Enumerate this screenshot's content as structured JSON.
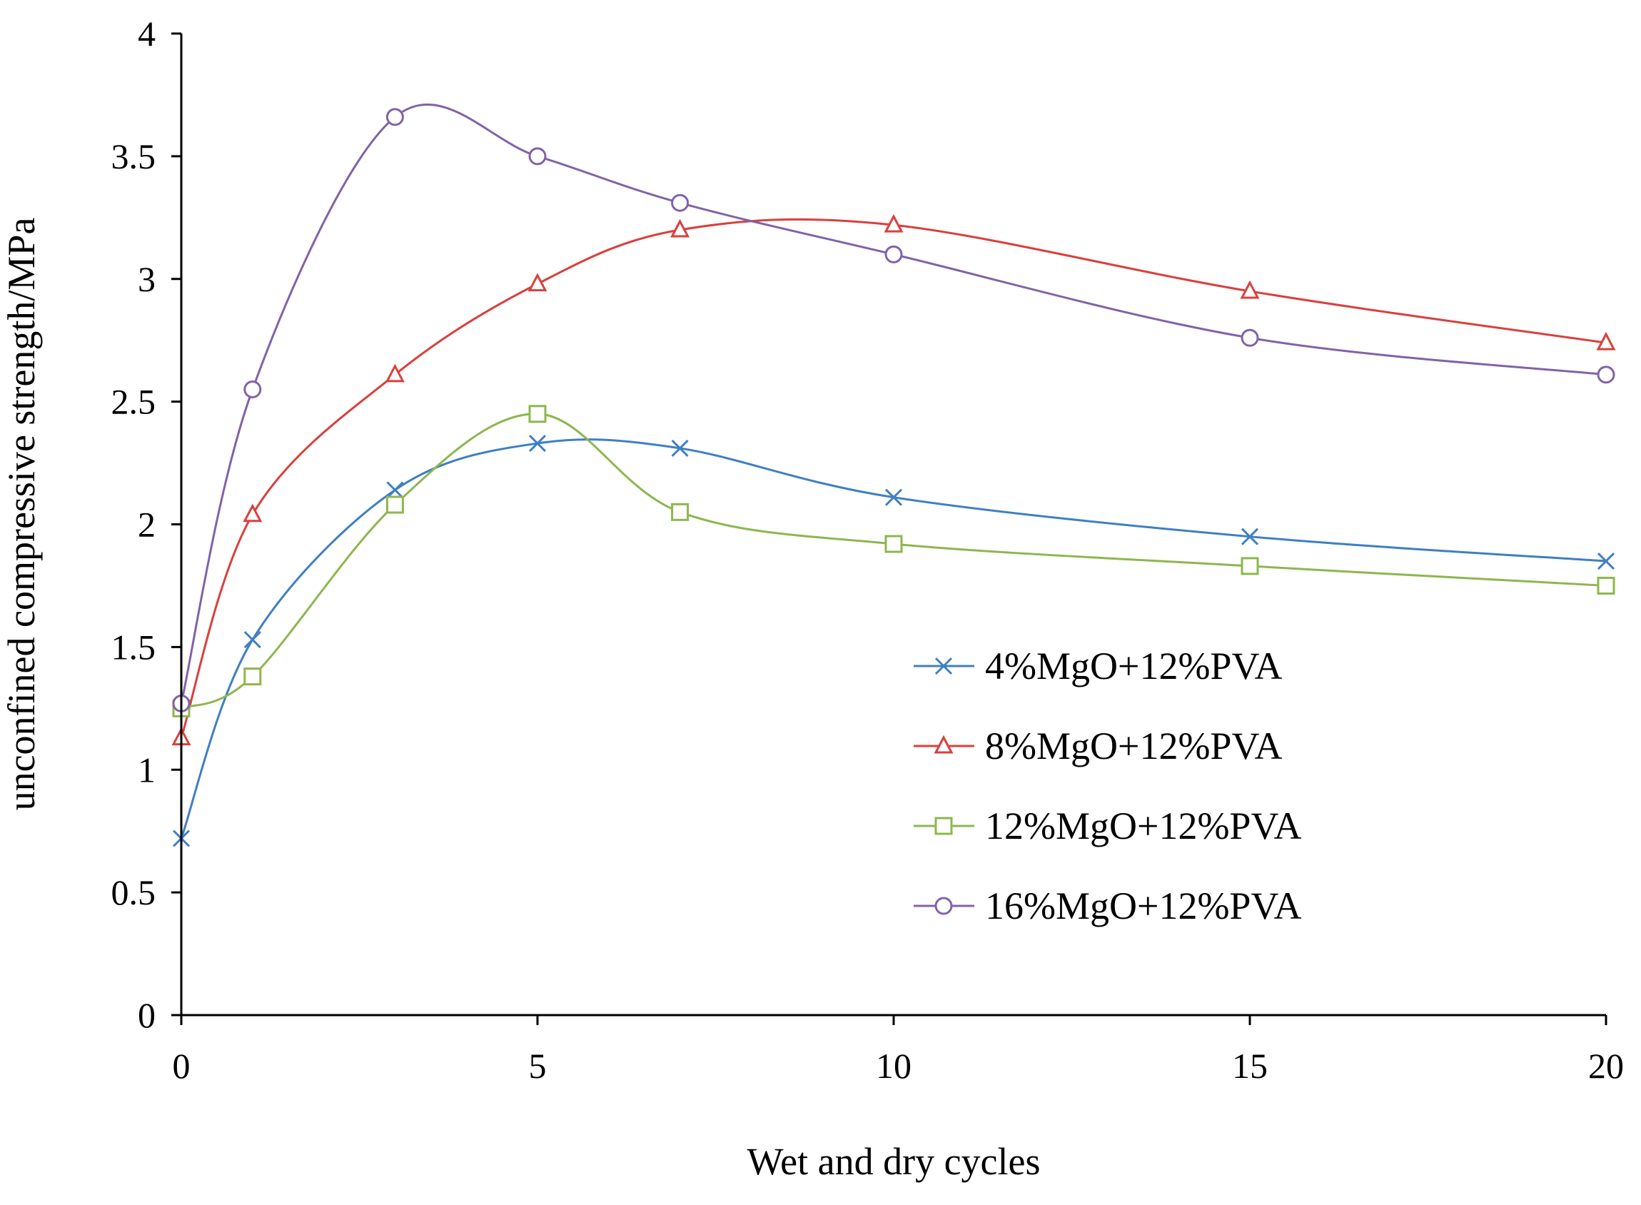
{
  "chart_data": {
    "type": "line",
    "title": "",
    "xlabel": "Wet and dry cycles",
    "ylabel": "unconfined compressive strength/MPa",
    "xlim": [
      0,
      20
    ],
    "ylim": [
      0,
      4
    ],
    "xticks": [
      0,
      5,
      10,
      15,
      20
    ],
    "xtick_labels": [
      "0",
      "5",
      "10",
      "15",
      "20"
    ],
    "yticks": [
      0,
      0.5,
      1,
      1.5,
      2,
      2.5,
      3,
      3.5,
      4
    ],
    "ytick_labels": [
      "0",
      "0.5",
      "1",
      "1.5",
      "2",
      "2.5",
      "3",
      "3.5",
      "4"
    ],
    "grid": false,
    "legend_position": "right",
    "series": [
      {
        "name": "4%MgO+12%PVA",
        "color": "#3f7fc3",
        "marker": "x",
        "x": [
          0,
          1,
          3,
          5,
          7,
          10,
          15,
          20
        ],
        "y": [
          0.72,
          1.53,
          2.14,
          2.33,
          2.31,
          2.11,
          1.95,
          1.85
        ]
      },
      {
        "name": "8%MgO+12%PVA",
        "color": "#d9403d",
        "marker": "triangle",
        "x": [
          0,
          1,
          3,
          5,
          7,
          10,
          15,
          20
        ],
        "y": [
          1.13,
          2.04,
          2.61,
          2.98,
          3.2,
          3.22,
          2.95,
          2.74
        ]
      },
      {
        "name": "12%MgO+12%PVA",
        "color": "#8db74e",
        "marker": "square",
        "x": [
          0,
          1,
          3,
          5,
          7,
          10,
          15,
          20
        ],
        "y": [
          1.25,
          1.38,
          2.08,
          2.45,
          2.05,
          1.92,
          1.83,
          1.75
        ]
      },
      {
        "name": "16%MgO+12%PVA",
        "color": "#8063a8",
        "marker": "circle",
        "x": [
          0,
          1,
          3,
          5,
          7,
          10,
          15,
          20
        ],
        "y": [
          1.27,
          2.55,
          3.66,
          3.5,
          3.31,
          3.1,
          2.76,
          2.61
        ]
      }
    ]
  }
}
